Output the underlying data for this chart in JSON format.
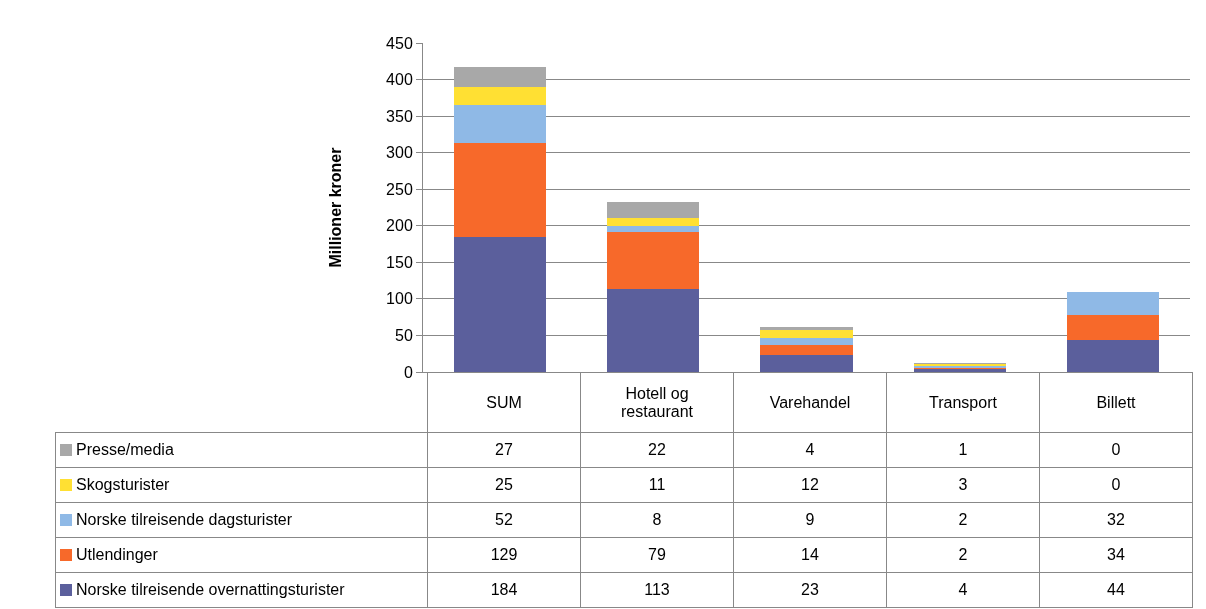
{
  "chart_data": {
    "type": "bar",
    "stacked": true,
    "ylabel": "Millioner kroner",
    "categories": [
      "SUM",
      "Hotell og restaurant",
      "Varehandel",
      "Transport",
      "Billett"
    ],
    "series": [
      {
        "name": "Norske tilreisende overnattingsturister",
        "color": "#5b5f9c",
        "values": [
          184,
          113,
          23,
          4,
          44
        ]
      },
      {
        "name": "Utlendinger",
        "color": "#f7692a",
        "values": [
          129,
          79,
          14,
          2,
          34
        ]
      },
      {
        "name": "Norske tilreisende dagsturister",
        "color": "#8fb9e6",
        "values": [
          52,
          8,
          9,
          2,
          32
        ]
      },
      {
        "name": "Skogsturister",
        "color": "#ffe033",
        "values": [
          25,
          11,
          12,
          3,
          0
        ]
      },
      {
        "name": "Presse/media",
        "color": "#a8a8a8",
        "values": [
          27,
          22,
          4,
          1,
          0
        ]
      }
    ],
    "ylim": [
      0,
      450
    ],
    "yticks": [
      0,
      50,
      100,
      150,
      200,
      250,
      300,
      350,
      400,
      450
    ],
    "grid": "y",
    "legend": "bottom",
    "data_labels": true
  }
}
